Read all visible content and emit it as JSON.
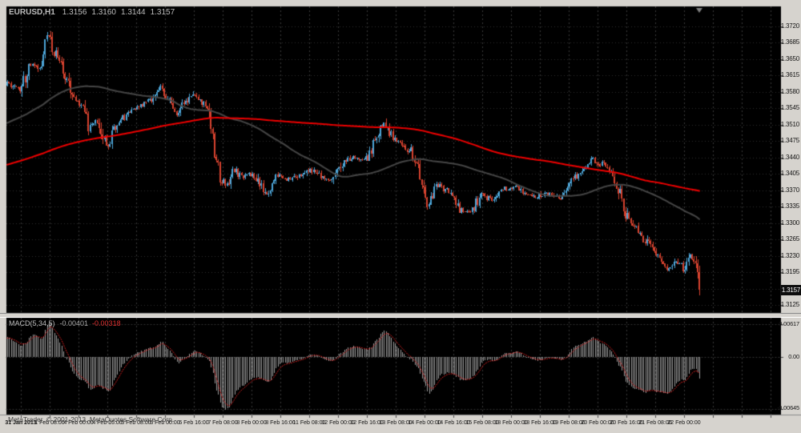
{
  "header": {
    "symbol": "EURUSD,H1",
    "open": "1.3156",
    "high": "1.3160",
    "low": "1.3144",
    "close": "1.3157"
  },
  "indicator": {
    "title": "MACD(5,34,5)",
    "value": "-0.00401",
    "signal": "-0.00318"
  },
  "footer": {
    "copyright": "MetaTrader, © 2001-2013, MetaQuotes Software Corp."
  },
  "price_axis": {
    "labels": [
      "1.3720",
      "1.3685",
      "1.3650",
      "1.3615",
      "1.3580",
      "1.3545",
      "1.3510",
      "1.3475",
      "1.3440",
      "1.3405",
      "1.3370",
      "1.3335",
      "1.3300",
      "1.3265",
      "1.3230",
      "1.3195",
      "1.3160",
      "1.3125"
    ],
    "current": "1.3157"
  },
  "macd_axis": {
    "labels": [
      "0.00617",
      "0.00",
      "-0.00645"
    ]
  },
  "time_axis": {
    "labels": [
      "31 Jan 2013",
      "1 Feb 08:00",
      "4 Feb 00:00",
      "4 Feb 16:00",
      "5 Feb 08:00",
      "6 Feb 00:00",
      "6 Feb 16:00",
      "7 Feb 08:00",
      "8 Feb 00:00",
      "8 Feb 16:00",
      "11 Feb 08:00",
      "12 Feb 00:00",
      "12 Feb 16:00",
      "13 Feb 08:00",
      "14 Feb 00:00",
      "14 Feb 16:00",
      "15 Feb 08:00",
      "18 Feb 00:00",
      "18 Feb 16:00",
      "19 Feb 08:00",
      "20 Feb 00:00",
      "20 Feb 16:00",
      "21 Feb 08:00",
      "22 Feb 00:00"
    ]
  },
  "chart_data": {
    "type": "candlestick",
    "symbol": "EURUSD",
    "timeframe": "H1",
    "title": "EURUSD,H1 1.3156 1.3160 1.3144 1.3157",
    "ylim": [
      1.3125,
      1.372
    ],
    "price_grid_step": 0.0035,
    "last_ohlc": {
      "open": 1.3156,
      "high": 1.316,
      "low": 1.3144,
      "close": 1.3157
    },
    "seed": 9,
    "price_anchors_note": "[bar_index, close-price] swing anchors read from chart; negative indices are off-screen history used to warm the moving averages; bars between anchors are interpolated",
    "price_anchors": [
      [
        -260,
        1.33
      ],
      [
        -230,
        1.332
      ],
      [
        -200,
        1.3335
      ],
      [
        -170,
        1.336
      ],
      [
        -150,
        1.339
      ],
      [
        -120,
        1.342
      ],
      [
        -90,
        1.3465
      ],
      [
        -60,
        1.347
      ],
      [
        -35,
        1.35
      ],
      [
        -18,
        1.3545
      ],
      [
        -8,
        1.3575
      ],
      [
        0,
        1.36
      ],
      [
        7,
        1.3582
      ],
      [
        13,
        1.364
      ],
      [
        18,
        1.3622
      ],
      [
        22,
        1.3706
      ],
      [
        27,
        1.3658
      ],
      [
        31,
        1.3628
      ],
      [
        37,
        1.356
      ],
      [
        42,
        1.3552
      ],
      [
        45,
        1.3505
      ],
      [
        50,
        1.3518
      ],
      [
        55,
        1.3462
      ],
      [
        60,
        1.3502
      ],
      [
        66,
        1.3532
      ],
      [
        73,
        1.3548
      ],
      [
        79,
        1.3562
      ],
      [
        85,
        1.3592
      ],
      [
        90,
        1.3558
      ],
      [
        94,
        1.353
      ],
      [
        98,
        1.3556
      ],
      [
        104,
        1.3576
      ],
      [
        109,
        1.3552
      ],
      [
        112,
        1.3546
      ],
      [
        115,
        1.3455
      ],
      [
        118,
        1.3396
      ],
      [
        122,
        1.338
      ],
      [
        126,
        1.3412
      ],
      [
        131,
        1.3396
      ],
      [
        136,
        1.3408
      ],
      [
        140,
        1.3382
      ],
      [
        144,
        1.336
      ],
      [
        150,
        1.3402
      ],
      [
        157,
        1.3392
      ],
      [
        163,
        1.3404
      ],
      [
        168,
        1.3418
      ],
      [
        174,
        1.34
      ],
      [
        180,
        1.3392
      ],
      [
        186,
        1.3428
      ],
      [
        192,
        1.3442
      ],
      [
        199,
        1.3436
      ],
      [
        205,
        1.3482
      ],
      [
        209,
        1.3516
      ],
      [
        214,
        1.3482
      ],
      [
        220,
        1.3466
      ],
      [
        224,
        1.3452
      ],
      [
        229,
        1.3402
      ],
      [
        233,
        1.3338
      ],
      [
        239,
        1.3382
      ],
      [
        245,
        1.3366
      ],
      [
        251,
        1.333
      ],
      [
        257,
        1.3322
      ],
      [
        263,
        1.3362
      ],
      [
        269,
        1.3348
      ],
      [
        276,
        1.3372
      ],
      [
        282,
        1.3376
      ],
      [
        288,
        1.3362
      ],
      [
        294,
        1.3356
      ],
      [
        299,
        1.3366
      ],
      [
        306,
        1.3352
      ],
      [
        312,
        1.3386
      ],
      [
        318,
        1.3408
      ],
      [
        325,
        1.3436
      ],
      [
        331,
        1.3422
      ],
      [
        336,
        1.3402
      ],
      [
        340,
        1.3362
      ],
      [
        344,
        1.3312
      ],
      [
        350,
        1.3286
      ],
      [
        356,
        1.3252
      ],
      [
        361,
        1.3228
      ],
      [
        367,
        1.3202
      ],
      [
        371,
        1.3218
      ],
      [
        375,
        1.3202
      ],
      [
        379,
        1.3236
      ],
      [
        381,
        1.3222
      ],
      [
        384,
        1.3157
      ]
    ],
    "moving_averages": [
      {
        "name": "fast-ma",
        "period": 72,
        "color": "#464646"
      },
      {
        "name": "slow-ma",
        "period": 240,
        "color": "#ee0000"
      }
    ],
    "macd": {
      "fast": 5,
      "slow": 34,
      "signal": 5,
      "value": -0.00401,
      "signal_value": -0.00318,
      "axis_top": 0.00617,
      "axis_bottom": -0.00645
    },
    "colors": {
      "window_bg": "#d6d3ce",
      "chart_bg": "#000000",
      "grid_vertical": "#3a3a3a",
      "grid_horizontal": "#2f2f2f",
      "candle_up": "#4da6d8",
      "candle_down": "#d8432f",
      "macd_histogram": "#9c9c9c",
      "macd_signal": "#e22222",
      "axis_text": "#141414",
      "badge_bg": "#0d0d0d",
      "badge_text": "#ffffff"
    }
  }
}
